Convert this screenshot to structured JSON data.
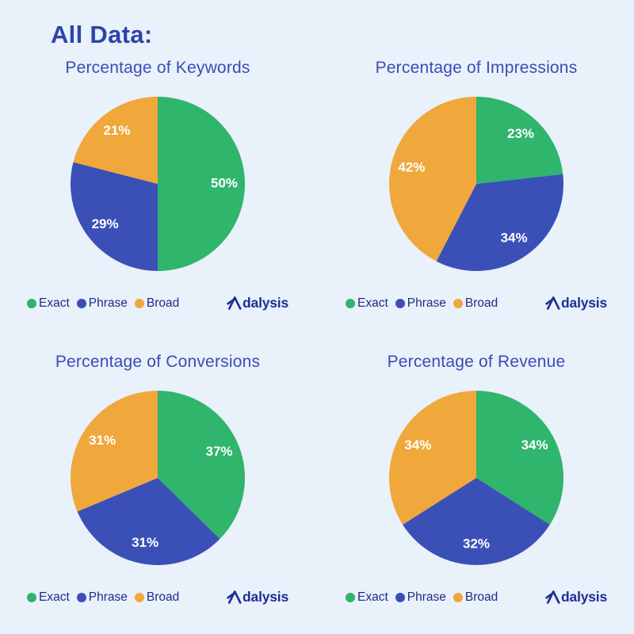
{
  "page": {
    "heading": "All Data:",
    "background_color": "#e9f1fa",
    "heading_color": "#2f43ab"
  },
  "colors": {
    "exact": "#2fb56c",
    "phrase": "#3b50b7",
    "broad": "#f0a73c",
    "chart_title": "#3a4db5",
    "legend_text": "#1e2d84",
    "logo": "#202f96",
    "slice_label": "#ffffff"
  },
  "legend": {
    "items": [
      {
        "key": "exact",
        "label": "Exact"
      },
      {
        "key": "phrase",
        "label": "Phrase"
      },
      {
        "key": "broad",
        "label": "Broad"
      }
    ]
  },
  "brand": {
    "name": "Adalysis",
    "text_after_mark": "dalysis"
  },
  "chart_data": [
    {
      "type": "pie",
      "title": "Percentage of Keywords",
      "categories": [
        "Exact",
        "Phrase",
        "Broad"
      ],
      "values": [
        50,
        29,
        21
      ],
      "labels": [
        "50%",
        "29%",
        "21%"
      ],
      "slice_keys": [
        "exact",
        "phrase",
        "broad"
      ],
      "start_angle": "top",
      "direction": "clockwise",
      "legend_position": "bottom"
    },
    {
      "type": "pie",
      "title": "Percentage of Impressions",
      "categories": [
        "Exact",
        "Phrase",
        "Broad"
      ],
      "values": [
        23,
        34,
        42
      ],
      "labels": [
        "23%",
        "34%",
        "42%"
      ],
      "slice_keys": [
        "exact",
        "phrase",
        "broad"
      ],
      "start_angle": "top",
      "direction": "clockwise",
      "legend_position": "bottom"
    },
    {
      "type": "pie",
      "title": "Percentage of Conversions",
      "categories": [
        "Exact",
        "Phrase",
        "Broad"
      ],
      "values": [
        37,
        31,
        31
      ],
      "labels": [
        "37%",
        "31%",
        "31%"
      ],
      "slice_keys": [
        "exact",
        "phrase",
        "broad"
      ],
      "start_angle": "top",
      "direction": "clockwise",
      "legend_position": "bottom"
    },
    {
      "type": "pie",
      "title": "Percentage of Revenue",
      "categories": [
        "Exact",
        "Phrase",
        "Broad"
      ],
      "values": [
        34,
        32,
        34
      ],
      "labels": [
        "34%",
        "32%",
        "34%"
      ],
      "slice_keys": [
        "exact",
        "phrase",
        "broad"
      ],
      "start_angle": "top",
      "direction": "clockwise",
      "legend_position": "bottom"
    }
  ]
}
